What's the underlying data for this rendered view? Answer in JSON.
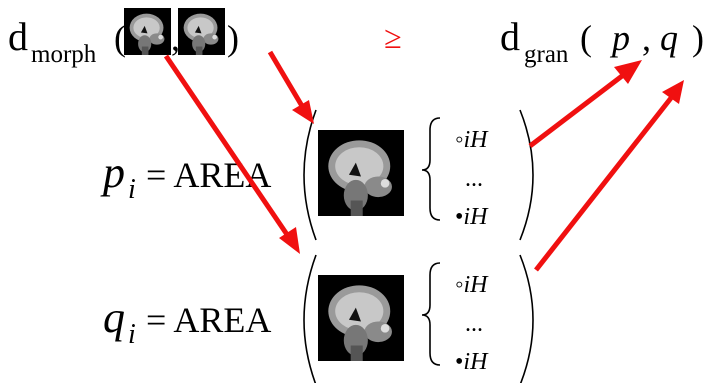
{
  "top": {
    "left_d": "d",
    "left_sub": "morph",
    "open": "(",
    "comma": ",",
    "close": ")",
    "relation": "≥",
    "right_d": "d",
    "right_sub": "gran",
    "right_open": "(",
    "p": "p",
    "right_comma": ",",
    "q": "q",
    "right_close": ")"
  },
  "rows": [
    {
      "var": "p",
      "sub": "i",
      "eq": "= AREA",
      "ops": [
        {
          "sym": "◦",
          "text": "iH"
        },
        {
          "text": "..."
        },
        {
          "sym": "•",
          "text": "iH"
        }
      ]
    },
    {
      "var": "q",
      "sub": "i",
      "eq": "= AREA",
      "ops": [
        {
          "sym": "◦",
          "text": "iH"
        },
        {
          "text": "..."
        },
        {
          "sym": "•",
          "text": "iH"
        }
      ]
    }
  ]
}
